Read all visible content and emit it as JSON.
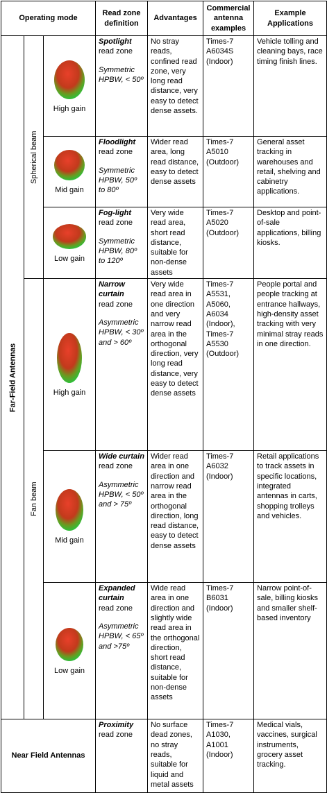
{
  "header": {
    "operating_mode": "Operating mode",
    "read_zone": "Read zone definition",
    "advantages": "Advantages",
    "commercial": "Commercial antenna examples",
    "applications": "Example Applications"
  },
  "groups": {
    "far_field": "Far-Field Antennas",
    "spherical": "Spherical beam",
    "fan": "Fan beam",
    "near_field": "Near Field Antennas"
  },
  "rows": [
    {
      "gain": "High gain",
      "zone_name": "Spotlight",
      "zone_suffix": "read zone",
      "hpbw": "Symmetric HPBW, < 50º",
      "advantages": "No stray reads, confined read zone, very long read distance, very easy to detect dense assets.",
      "commercial": "Times-7 A6034S (Indoor)",
      "applications": "Vehicle tolling and cleaning bays, race timing finish lines."
    },
    {
      "gain": "Mid gain",
      "zone_name": "Floodlight",
      "zone_suffix": "read zone",
      "hpbw": "Symmetric HPBW, 50º to 80º",
      "advantages": "Wider read area, long read distance, easy to detect dense assets",
      "commercial": "Times-7 A5010 (Outdoor)",
      "applications": "General asset tracking in warehouses and retail, shelving and cabinetry applications."
    },
    {
      "gain": "Low gain",
      "zone_name": "Fog-light",
      "zone_suffix": "read zone",
      "hpbw": "Symmetric HPBW, 80º to 120º",
      "advantages": "Very wide read area, short read distance, suitable for non-dense assets",
      "commercial": "Times-7 A5020 (Outdoor)",
      "applications": "Desktop and point-of-sale applications, billing kiosks."
    },
    {
      "gain": "High gain",
      "zone_name": "Narrow curtain",
      "zone_suffix": "read zone",
      "hpbw": "Asymmetric HPBW, < 30º and > 60º",
      "advantages": "Very wide read area in one direction and very narrow read area in the orthogonal direction, very long read distance, very easy to detect dense assets",
      "commercial": "Times-7 A5531, A5060, A6034 (Indoor), Times-7 A5530 (Outdoor)",
      "applications": "People portal and people tracking at entrance hallways, high-density asset tracking with very minimal stray reads in one direction."
    },
    {
      "gain": "Mid gain",
      "zone_name": "Wide curtain",
      "zone_suffix": "read zone",
      "hpbw": "Asymmetric HPBW, < 50º and > 75º",
      "advantages": "Wider read area in one direction and narrow read area in the orthogonal direction, long read distance, easy to detect dense assets",
      "commercial": "Times-7 A6032 (Indoor)",
      "applications": "Retail applications to track assets in specific locations, integrated antennas in carts, shopping trolleys and vehicles."
    },
    {
      "gain": "Low gain",
      "zone_name": "Expanded curtain",
      "zone_suffix": "read zone",
      "hpbw": "Asymmetric HPBW, < 65º and >75º",
      "advantages": "Wide read area in one direction and slightly wide read area in the orthogonal direction, short read distance, suitable for non-dense assets",
      "commercial": "Times-7 B6031 (Indoor)",
      "applications": "Narrow point-of-sale, billing kiosks and smaller shelf-based inventory"
    },
    {
      "zone_name": "Proximity",
      "zone_suffix": "read zone",
      "advantages": "No surface dead zones, no stray reads, suitable for liquid and metal assets",
      "commercial": "Times-7 A1030, A1001 (Indoor)",
      "applications": "Medical vials, vaccines, surgical instruments, grocery asset tracking."
    }
  ]
}
